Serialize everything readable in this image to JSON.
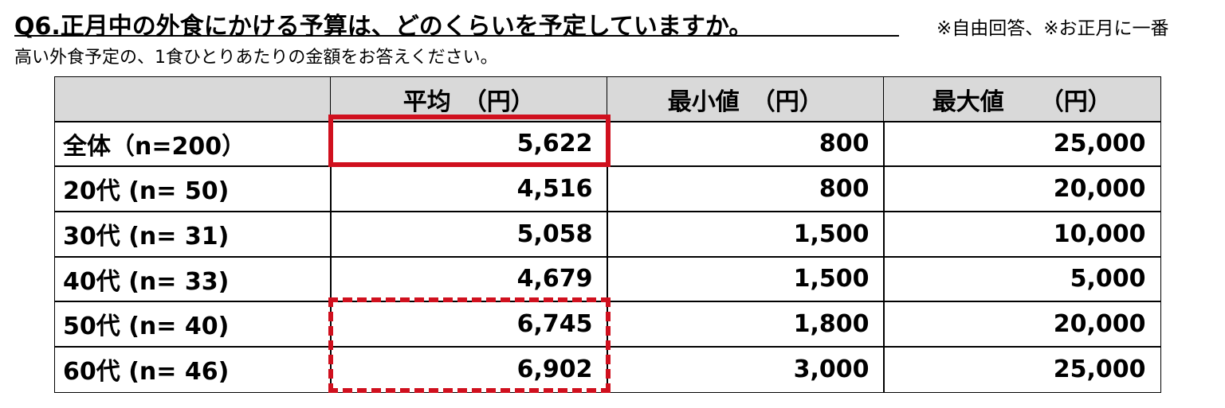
{
  "header": {
    "title": "Q6.正月中の外食にかける予算は、どのくらいを予定していますか。",
    "note": "※自由回答、※お正月に一番",
    "subtitle": "高い外食予定の、1食ひとりあたりの金額をお答えください。"
  },
  "table": {
    "columns": [
      "平均　（円）",
      "最小値　（円）",
      "最大値　　（円）"
    ],
    "rows": [
      [
        "全体（n=200）",
        "5,622",
        "800",
        "25,000"
      ],
      [
        "20代 (n=  50)",
        "4,516",
        "800",
        "20,000"
      ],
      [
        "30代 (n=  31)",
        "5,058",
        "1,500",
        "10,000"
      ],
      [
        "40代 (n=  33)",
        "4,679",
        "1,500",
        "5,000"
      ],
      [
        "50代 (n=  40)",
        "6,745",
        "1,800",
        "20,000"
      ],
      [
        "60代 (n=  46)",
        "6,902",
        "3,000",
        "25,000"
      ]
    ]
  }
}
